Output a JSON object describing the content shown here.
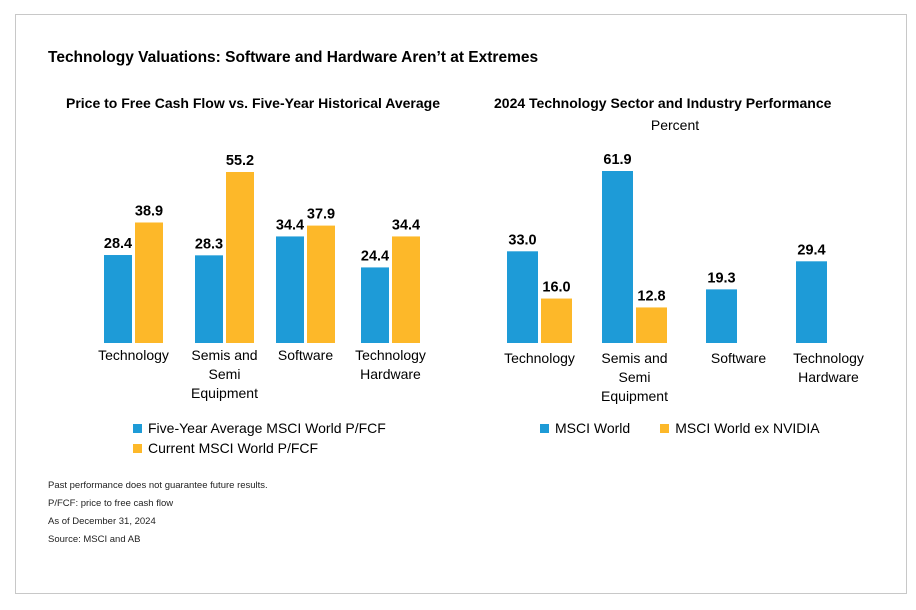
{
  "main_title": "Technology Valuations: Software and Hardware Aren’t at Extremes",
  "colors": {
    "series1": "#1e9bd7",
    "series2": "#fdb829"
  },
  "chart_data": [
    {
      "type": "bar",
      "title": "Price to Free Cash Flow vs. Five-Year Historical Average",
      "subtitle": "",
      "categories": [
        [
          "Technology"
        ],
        [
          "Semis and",
          "Semi",
          "Equipment"
        ],
        [
          "Software"
        ],
        [
          "Technology",
          "Hardware"
        ]
      ],
      "series": [
        {
          "name": "Five-Year Average MSCI World P/FCF",
          "values": [
            28.4,
            28.3,
            34.4,
            24.4
          ]
        },
        {
          "name": "Current MSCI World P/FCF",
          "values": [
            38.9,
            55.2,
            37.9,
            34.4
          ]
        }
      ],
      "ylim": [
        0,
        55.2
      ],
      "legend": "bottom"
    },
    {
      "type": "bar",
      "title": "2024 Technology Sector and Industry Performance",
      "subtitle": "Percent",
      "categories": [
        [
          "Technology"
        ],
        [
          "Semis and",
          "Semi",
          "Equipment"
        ],
        [
          "Software"
        ],
        [
          "Technology",
          "Hardware"
        ]
      ],
      "series": [
        {
          "name": "MSCI World",
          "values": [
            33.0,
            61.9,
            19.3,
            29.4
          ]
        },
        {
          "name": "MSCI World ex NVIDIA",
          "values": [
            16.0,
            12.8,
            null,
            null
          ]
        }
      ],
      "ylim": [
        0,
        61.9
      ],
      "legend": "bottom"
    }
  ],
  "notes": [
    "Past performance does not guarantee future results.",
    "P/FCF: price to free cash flow",
    "As of December 31, 2024",
    "Source: MSCI and AB"
  ]
}
